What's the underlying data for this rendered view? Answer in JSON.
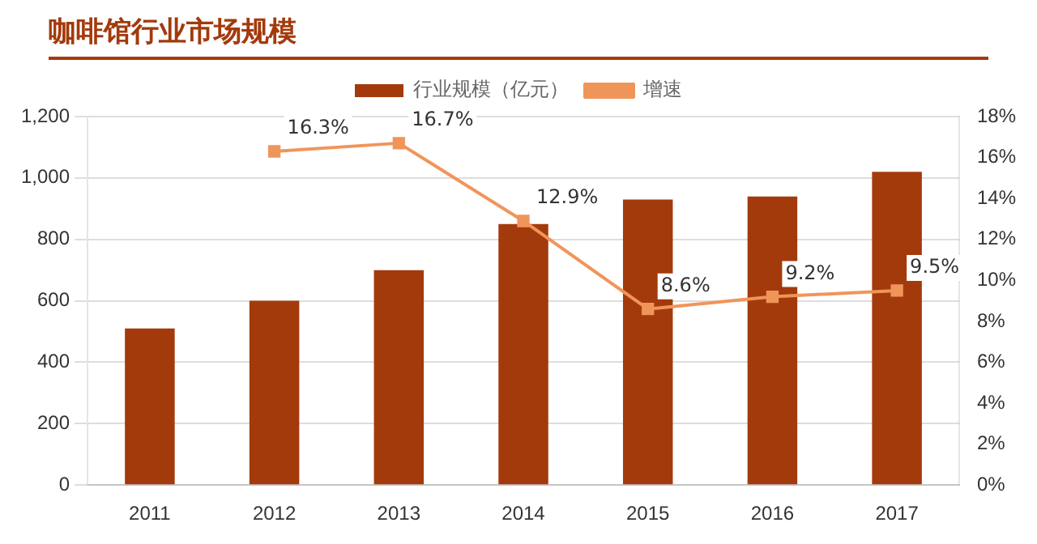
{
  "chart_data": {
    "type": "bar",
    "title": "咖啡馆行业市场规模",
    "categories": [
      "2011",
      "2012",
      "2013",
      "2014",
      "2015",
      "2016",
      "2017"
    ],
    "series": [
      {
        "name": "行业规模（亿元）",
        "color": "#a33a0c",
        "values": [
          510,
          600,
          700,
          850,
          930,
          940,
          1020
        ]
      },
      {
        "name": "增速",
        "type": "line",
        "axis": "y2",
        "color": "#f0955a",
        "marker": "square",
        "values": [
          null,
          16.3,
          16.7,
          12.9,
          8.6,
          9.2,
          9.5
        ],
        "value_labels": [
          null,
          "16.3%",
          "16.7%",
          "12.9%",
          "8.6%",
          "9.2%",
          "9.5%"
        ]
      }
    ],
    "ylim": [
      0,
      1200
    ],
    "yticks": [
      {
        "value": 0,
        "label": "0"
      },
      {
        "value": 200,
        "label": "200"
      },
      {
        "value": 400,
        "label": "400"
      },
      {
        "value": 600,
        "label": "600"
      },
      {
        "value": 800,
        "label": "800"
      },
      {
        "value": 1000,
        "label": "1,000"
      },
      {
        "value": 1200,
        "label": "1,200"
      }
    ],
    "y2lim": [
      0,
      18
    ],
    "y2ticks": [
      {
        "value": 0,
        "label": "0%"
      },
      {
        "value": 2,
        "label": "2%"
      },
      {
        "value": 4,
        "label": "4%"
      },
      {
        "value": 6,
        "label": "6%"
      },
      {
        "value": 8,
        "label": "8%"
      },
      {
        "value": 10,
        "label": "10%"
      },
      {
        "value": 12,
        "label": "12%"
      },
      {
        "value": 14,
        "label": "14%"
      },
      {
        "value": 16,
        "label": "16%"
      },
      {
        "value": 18,
        "label": "18%"
      }
    ],
    "grid": "y",
    "legend": "top"
  }
}
